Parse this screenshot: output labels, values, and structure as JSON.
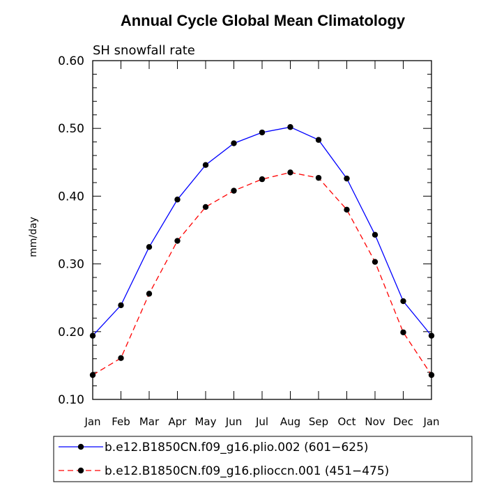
{
  "chart_data": {
    "type": "line",
    "title": "Annual Cycle Global Mean Climatology",
    "subtitle": "SH snowfall rate",
    "xlabel": "",
    "ylabel": "mm/day",
    "categories": [
      "Jan",
      "Feb",
      "Mar",
      "Apr",
      "May",
      "Jun",
      "Jul",
      "Aug",
      "Sep",
      "Oct",
      "Nov",
      "Dec",
      "Jan"
    ],
    "ylim": [
      0.1,
      0.6
    ],
    "yticks": [
      "0.10",
      "0.20",
      "0.30",
      "0.40",
      "0.50",
      "0.60"
    ],
    "series": [
      {
        "name": "b.e12.B1850CN.f09_g16.plio.002 (601−625)",
        "color": "#0000ff",
        "dash": "solid",
        "values": [
          0.194,
          0.239,
          0.325,
          0.395,
          0.446,
          0.478,
          0.494,
          0.502,
          0.483,
          0.426,
          0.343,
          0.245,
          0.194
        ]
      },
      {
        "name": "b.e12.B1850CN.f09_g16.plioccn.001 (451−475)",
        "color": "#ff0000",
        "dash": "dashed",
        "values": [
          0.136,
          0.161,
          0.256,
          0.334,
          0.384,
          0.408,
          0.425,
          0.435,
          0.427,
          0.38,
          0.303,
          0.199,
          0.136
        ]
      }
    ],
    "legend_position": "bottom"
  }
}
